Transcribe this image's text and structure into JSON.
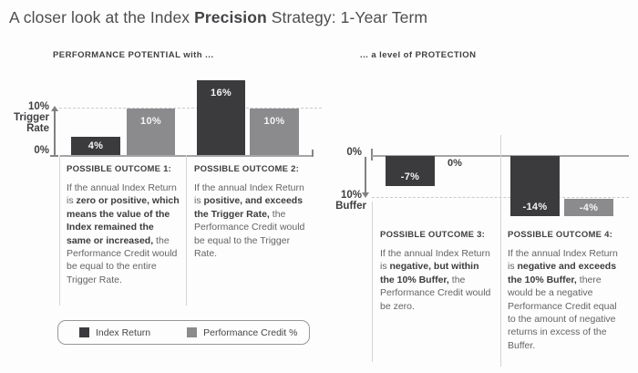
{
  "page_title": {
    "segments": [
      {
        "t": "A closer look at the Index ",
        "b": false
      },
      {
        "t": "Precision",
        "b": true
      },
      {
        "t": " Strategy: 1-Year Term",
        "b": false
      }
    ]
  },
  "chart_data": [
    {
      "type": "bar",
      "title": "PERFORMANCE POTENTIAL with ...",
      "categories": [
        "POSSIBLE OUTCOME 1:",
        "POSSIBLE OUTCOME 2:"
      ],
      "series": [
        {
          "name": "Index Return",
          "color": "#3b3b3d",
          "values": [
            4,
            16
          ],
          "labels": [
            "4%",
            "16%"
          ]
        },
        {
          "name": "Performance Credit %",
          "color": "#8b8b8d",
          "values": [
            10,
            10
          ],
          "labels": [
            "10%",
            "10%"
          ]
        }
      ],
      "y_axis": {
        "labels": [
          "10%",
          "Trigger",
          "Rate",
          "0%"
        ]
      },
      "reference_line": {
        "value": 10,
        "label": "10% Trigger Rate",
        "style": "dashed"
      },
      "ylim": [
        0,
        16
      ],
      "unit": "%",
      "grid": false
    },
    {
      "type": "bar",
      "title": "... a level of PROTECTION",
      "categories": [
        "POSSIBLE OUTCOME 3:",
        "POSSIBLE OUTCOME 4:"
      ],
      "series": [
        {
          "name": "Index Return",
          "color": "#3b3b3d",
          "values": [
            -7,
            -14
          ],
          "labels": [
            "-7%",
            "-14%"
          ]
        },
        {
          "name": "Performance Credit %",
          "color": "#8b8b8d",
          "values": [
            0,
            -4
          ],
          "labels": [
            "0%",
            "-4%"
          ]
        }
      ],
      "y_axis": {
        "labels": [
          "0%",
          "10%",
          "Buffer"
        ]
      },
      "reference_line": {
        "value": -10,
        "label": "10% Buffer",
        "style": "dashed"
      },
      "ylim": [
        -16,
        0
      ],
      "unit": "%",
      "grid": false
    }
  ],
  "outcomes": [
    {
      "heading": "POSSIBLE OUTCOME 1:",
      "body": [
        {
          "t": "If the annual Index Return is ",
          "b": false
        },
        {
          "t": "zero or positive, which means the value of the Index remained the same or increased,",
          "b": true
        },
        {
          "t": " the Performance Credit would be equal to the entire Trigger Rate.",
          "b": false
        }
      ]
    },
    {
      "heading": "POSSIBLE OUTCOME 2:",
      "body": [
        {
          "t": "If the annual Index Return is ",
          "b": false
        },
        {
          "t": "positive, and exceeds the Trigger Rate,",
          "b": true
        },
        {
          "t": " the Performance Credit would be equal to the Trigger Rate.",
          "b": false
        }
      ]
    },
    {
      "heading": "POSSIBLE OUTCOME 3:",
      "body": [
        {
          "t": "If the annual Index Return is ",
          "b": false
        },
        {
          "t": "negative, but within the 10% Buffer,",
          "b": true
        },
        {
          "t": " the Performance Credit would be zero.",
          "b": false
        }
      ]
    },
    {
      "heading": "POSSIBLE OUTCOME 4:",
      "body": [
        {
          "t": "If the annual Index Return is ",
          "b": false
        },
        {
          "t": "negative and exceeds the 10% Buffer,",
          "b": true
        },
        {
          "t": " there would be a negative Performance Credit equal to the amount of negative returns in excess of the Buffer.",
          "b": false
        }
      ]
    }
  ],
  "legend": {
    "items": [
      {
        "label": "Index Return",
        "color": "#3b3b3d"
      },
      {
        "label": "Performance Credit %",
        "color": "#8b8b8d"
      }
    ]
  }
}
